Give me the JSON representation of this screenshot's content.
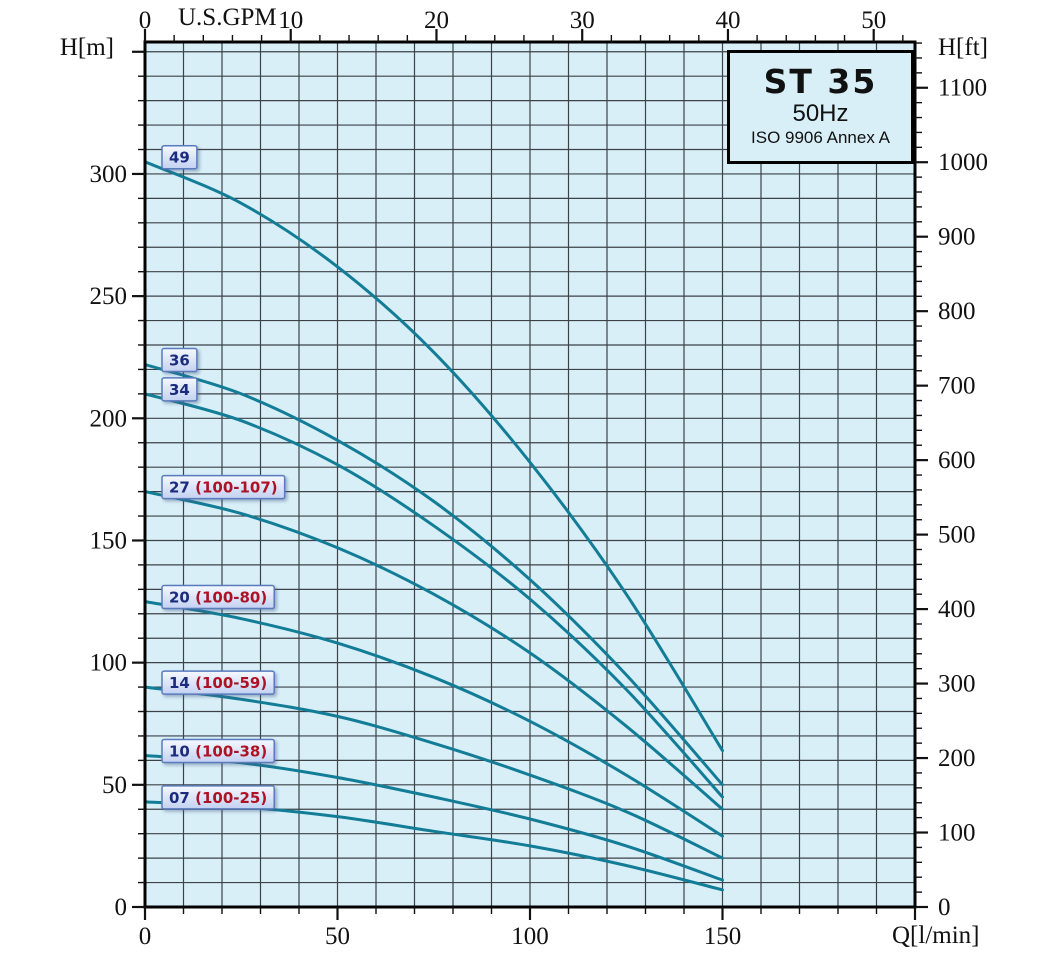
{
  "title_box": {
    "model": "ST 35",
    "frequency": "50Hz",
    "standard": "ISO 9906 Annex A"
  },
  "chart_data": {
    "type": "line",
    "title": "ST 35 pump performance curves",
    "x": [
      0,
      25,
      50,
      75,
      100,
      125,
      150
    ],
    "x_unit": "l/min",
    "y_unit": "m",
    "xlim": [
      0,
      200
    ],
    "ylim_m": [
      0,
      354
    ],
    "ylim_ft": [
      0,
      1161
    ],
    "x2lim_gpm": [
      0,
      52
    ],
    "grid": "on",
    "series": [
      {
        "label": "49",
        "label_paren": "",
        "values_H_m": [
          305,
          288,
          262,
          227,
          182,
          128,
          64
        ]
      },
      {
        "label": "36",
        "label_paren": "",
        "values_H_m": [
          222,
          210,
          191,
          166,
          134,
          95,
          50
        ]
      },
      {
        "label": "34",
        "label_paren": "",
        "values_H_m": [
          210,
          199,
          181,
          156,
          126,
          89,
          45
        ]
      },
      {
        "label": "27",
        "label_paren": "(100-107)",
        "values_H_m": [
          170,
          161,
          147,
          128,
          104,
          74,
          40
        ]
      },
      {
        "label": "20",
        "label_paren": "(100-80)",
        "values_H_m": [
          125,
          118,
          108,
          94,
          76,
          54,
          29
        ]
      },
      {
        "label": "14",
        "label_paren": "(100-59)",
        "values_H_m": [
          90,
          85,
          78,
          67,
          54,
          39,
          20
        ]
      },
      {
        "label": "10",
        "label_paren": "(100-38)",
        "values_H_m": [
          62,
          59,
          53,
          45,
          36,
          25,
          11
        ]
      },
      {
        "label": "07",
        "label_paren": "(100-25)",
        "values_H_m": [
          43,
          41,
          37,
          31,
          25,
          17,
          7
        ]
      }
    ],
    "axes": {
      "top": {
        "label": "U.S.GPM",
        "major_ticks": [
          0,
          10,
          20,
          30,
          40,
          50
        ],
        "minor_step": 2
      },
      "bottom": {
        "label": "Q[l/min]",
        "major_ticks": [
          0,
          50,
          100,
          150
        ],
        "minor_step": 10
      },
      "left": {
        "label": "H[m]",
        "major_ticks": [
          0,
          50,
          100,
          150,
          200,
          250,
          300
        ],
        "minor_step": 10
      },
      "right": {
        "label": "H[ft]",
        "major_ticks": [
          0,
          100,
          200,
          300,
          400,
          500,
          600,
          700,
          800,
          900,
          1000,
          1100
        ],
        "minor_step": 20
      }
    },
    "legend_position": "none",
    "colors": {
      "plot_bg": "#D8EFF8",
      "grid": "#3C4247",
      "curve": "#137C96",
      "frame": "#000000",
      "tick": "#111111",
      "badge_bg_top": "#F5F9FF",
      "badge_bg_bottom": "#C3D1F2",
      "badge_border": "#5A7BBE",
      "badge_text": "#1B2B7D",
      "badge_text_red": "#AD1325"
    }
  }
}
